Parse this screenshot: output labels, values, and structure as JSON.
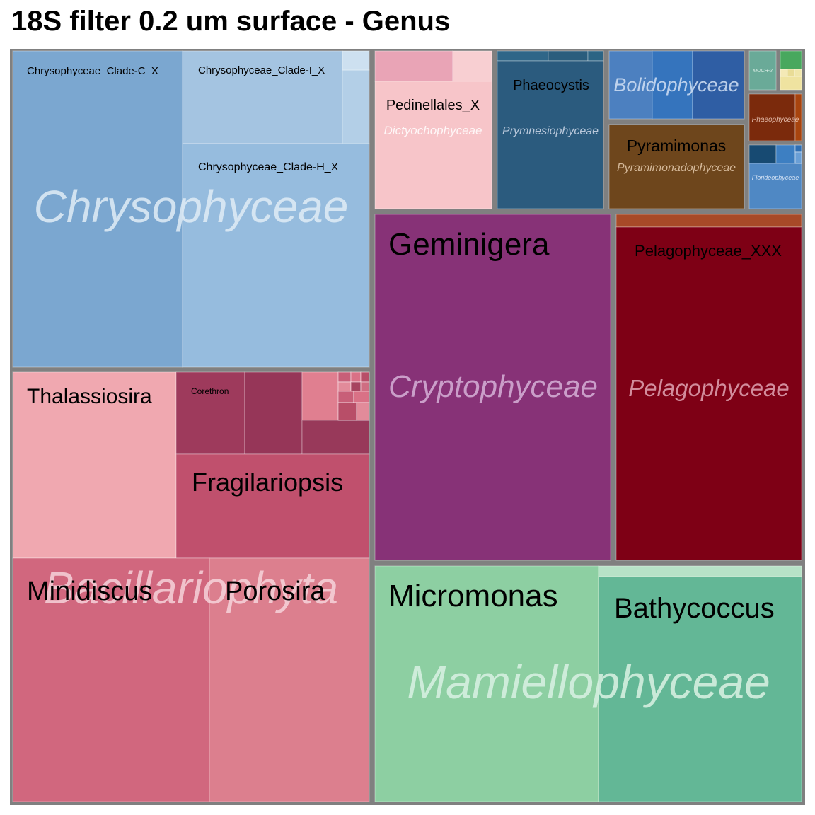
{
  "chart_data": {
    "type": "treemap",
    "title": "18S filter 0.2 um surface - Genus",
    "groups": [
      {
        "name": "Chrysophyceae",
        "genera": [
          {
            "name": "Chrysophyceae_Clade-C_X",
            "color": "#7ba7d0"
          },
          {
            "name": "Chrysophyceae_Clade-I_X",
            "color": "#a4c4e1"
          },
          {
            "name": "Chrysophyceae_Clade-H_X",
            "color": "#96bcde"
          },
          {
            "name": "",
            "color": "#b3cfe7"
          },
          {
            "name": "",
            "color": "#cde0f0"
          }
        ]
      },
      {
        "name": "Bacillariophyta",
        "genera": [
          {
            "name": "Thalassiosira",
            "color": "#f0a8b0"
          },
          {
            "name": "Corethron",
            "color": "#9e3a5c"
          },
          {
            "name": "",
            "color": "#963658"
          },
          {
            "name": "",
            "color": "#e07f90"
          },
          {
            "name": "",
            "color": "#98395a"
          },
          {
            "name": "Fragilariopsis",
            "color": "#c0506d"
          },
          {
            "name": "Minidiscus",
            "color": "#d1677e"
          },
          {
            "name": "Porosira",
            "color": "#dc7f8e"
          }
        ]
      },
      {
        "name": "Dictyochophyceae",
        "genera": [
          {
            "name": "",
            "color": "#e9a4b6"
          },
          {
            "name": "",
            "color": "#f8cfd2"
          },
          {
            "name": "Pedinellales_X",
            "color": "#f7c5c9"
          }
        ]
      },
      {
        "name": "Prymnesiophyceae",
        "genera": [
          {
            "name": "",
            "color": "#2f6688"
          },
          {
            "name": "",
            "color": "#2a5d7d"
          },
          {
            "name": "",
            "color": "#2c6484"
          },
          {
            "name": "Phaeocystis",
            "color": "#2b5b7e"
          }
        ]
      },
      {
        "name": "Bolidophyceae",
        "genera": [
          {
            "name": "",
            "color": "#4c80c0"
          },
          {
            "name": "",
            "color": "#3574bd"
          },
          {
            "name": "",
            "color": "#2f5ea4"
          }
        ]
      },
      {
        "name": "Pyramimonadophyceae",
        "genera": [
          {
            "name": "Pyramimonas",
            "color": "#6e461c"
          }
        ]
      },
      {
        "name": "MOCH-2",
        "genera": [
          {
            "name": "",
            "color": "#6aaa98"
          }
        ]
      },
      {
        "name": "",
        "genera": [
          {
            "name": "",
            "color": "#48a85e"
          },
          {
            "name": "",
            "color": "#efe3a0"
          }
        ]
      },
      {
        "name": "Phaeophyceae",
        "genera": [
          {
            "name": "",
            "color": "#7b2a0c"
          },
          {
            "name": "",
            "color": "#a8440e"
          }
        ]
      },
      {
        "name": "Florideophyceae",
        "genera": [
          {
            "name": "",
            "color": "#174a72"
          },
          {
            "name": "",
            "color": "#3d7fc2"
          },
          {
            "name": "",
            "color": "#4f88c4"
          }
        ]
      },
      {
        "name": "Cryptophyceae",
        "genera": [
          {
            "name": "Geminigera",
            "color": "#873277"
          }
        ]
      },
      {
        "name": "Pelagophyceae",
        "genera": [
          {
            "name": "",
            "color": "#a84a28"
          },
          {
            "name": "Pelagophyceae_XXX",
            "color": "#7e0015"
          }
        ]
      },
      {
        "name": "Mamiellophyceae",
        "genera": [
          {
            "name": "Micromonas",
            "color": "#8dcfa2"
          },
          {
            "name": "Bathycoccus",
            "color": "#63b796"
          },
          {
            "name": "",
            "color": "#b7e2c7"
          }
        ]
      }
    ]
  }
}
